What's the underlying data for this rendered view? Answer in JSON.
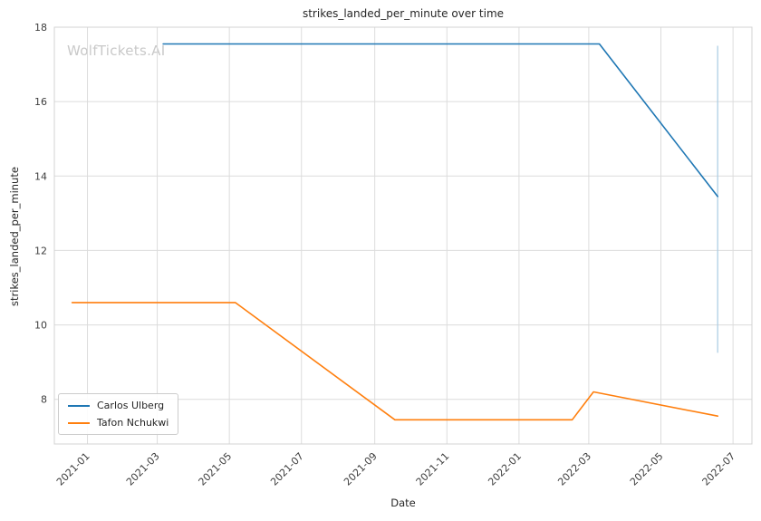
{
  "watermark": "WolfTickets.AI",
  "colors": {
    "grid": "#dcdcdc",
    "spine": "#d3d3d3",
    "tick_text": "#3d3d3d",
    "watermark": "#c9c9c9"
  },
  "chart_data": {
    "type": "line",
    "title": "strikes_landed_per_minute over time",
    "xlabel": "Date",
    "ylabel": "strikes_landed_per_minute",
    "grid": true,
    "legend_position": "lower left",
    "x_ticks": [
      "2021-01",
      "2021-03",
      "2021-05",
      "2021-07",
      "2021-09",
      "2021-11",
      "2022-01",
      "2022-03",
      "2022-05",
      "2022-07"
    ],
    "y_ticks": [
      8,
      10,
      12,
      14,
      16,
      18
    ],
    "ylim": [
      6.8,
      18.0
    ],
    "xlim": [
      "2020-12-04",
      "2022-07-17"
    ],
    "series": [
      {
        "name": "Carlos Ulberg",
        "color": "#1f77b4",
        "points": [
          [
            "2021-03-06",
            17.55
          ],
          [
            "2022-03-10",
            17.55
          ],
          [
            "2022-06-18",
            13.45
          ]
        ]
      },
      {
        "name": "Tafon Nchukwi",
        "color": "#ff7f0e",
        "points": [
          [
            "2020-12-19",
            10.6
          ],
          [
            "2021-05-06",
            10.6
          ],
          [
            "2021-09-18",
            7.45
          ],
          [
            "2022-02-15",
            7.45
          ],
          [
            "2022-03-05",
            8.2
          ],
          [
            "2022-06-18",
            7.55
          ]
        ]
      }
    ],
    "annotations": [
      {
        "type": "vline",
        "x": "2022-06-18",
        "y1": 9.25,
        "y2": 17.5,
        "color": "#a9cbe3"
      }
    ]
  }
}
